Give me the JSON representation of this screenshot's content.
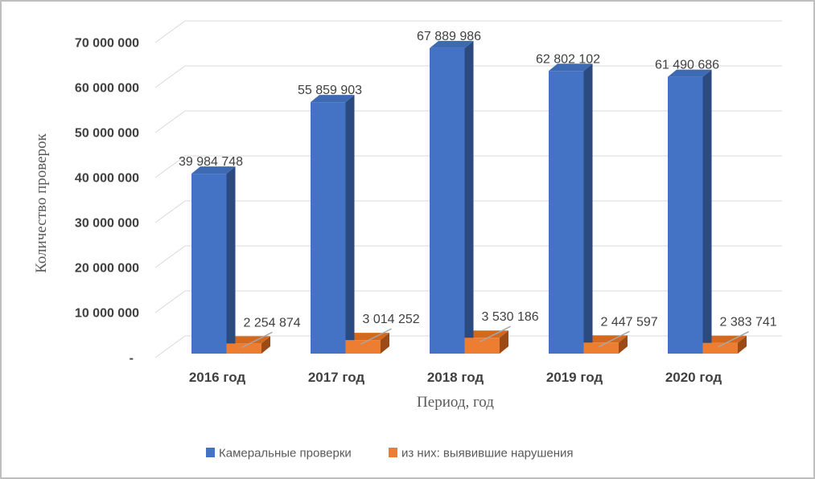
{
  "chart_data": {
    "type": "bar",
    "variant": "3d-clustered-column",
    "title": "",
    "categories": [
      "2016 год",
      "2017 год",
      "2018 год",
      "2019 год",
      "2020 год"
    ],
    "series": [
      {
        "name": "Камеральные проверки",
        "color": "#4472C4",
        "color_top": "#3E69B3",
        "color_side": "#2B4B80",
        "values": [
          39984748,
          55859903,
          67889986,
          62802102,
          61490686
        ],
        "labels": [
          "39 984 748",
          "55 859 903",
          "67 889 986",
          "62 802 102",
          "61 490 686"
        ]
      },
      {
        "name": "из них: выявившие нарушения",
        "color": "#ED7D31",
        "color_top": "#D3691F",
        "color_side": "#9C4B17",
        "values": [
          2254874,
          3014252,
          3530186,
          2447597,
          2383741
        ],
        "labels": [
          "2 254 874",
          "3 014 252",
          "3 530 186",
          "2 447 597",
          "2 383 741"
        ]
      }
    ],
    "xlabel": "Период, год",
    "ylabel": "Количество проверок",
    "ylim": [
      0,
      70000000
    ],
    "ytick_interval": 10000000,
    "ytick_labels": [
      "-",
      "10 000 000",
      "20 000 000",
      "30 000 000",
      "40 000 000",
      "50 000 000",
      "60 000 000",
      "70 000 000"
    ],
    "grid": true,
    "legend_position": "bottom"
  },
  "styles": {
    "grid_color": "#D9D9D9",
    "leader_color": "#A6A6A6",
    "text_color": "#404040",
    "muted_text_color": "#595959",
    "frame_border": "#BFBFBF",
    "background": "#FFFFFF"
  }
}
